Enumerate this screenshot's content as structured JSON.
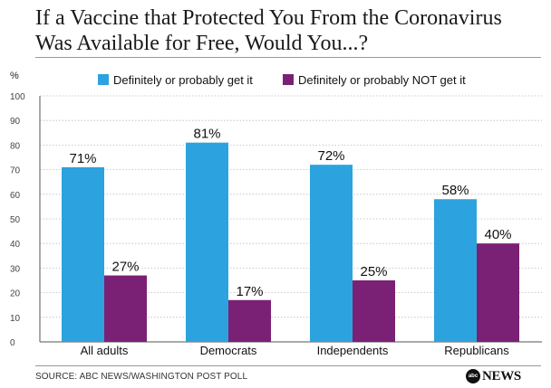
{
  "title_line1": "If a Vaccine that Protected You From the Coronavirus",
  "title_line2": "Was Available for Free, Would You...?",
  "source": "SOURCE: ABC NEWS/WASHINGTON POST POLL",
  "brand": {
    "logo_text": "abc",
    "name": "NEWS"
  },
  "colors": {
    "get": "#2ca3de",
    "not_get": "#7b2175",
    "axis": "#555555",
    "grid": "#bbbbbb"
  },
  "chart_data": {
    "type": "bar",
    "unit_label": "%",
    "ylim": [
      0,
      100
    ],
    "yticks": [
      0,
      10,
      20,
      30,
      40,
      50,
      60,
      70,
      80,
      90,
      100
    ],
    "categories": [
      "All adults",
      "Democrats",
      "Independents",
      "Republicans"
    ],
    "series": [
      {
        "name": "Definitely or probably get it",
        "values": [
          71,
          81,
          72,
          58
        ],
        "labels": [
          "71%",
          "81%",
          "72%",
          "58%"
        ],
        "color": "#2ca3de"
      },
      {
        "name": "Definitely or probably NOT get it",
        "values": [
          27,
          17,
          25,
          40
        ],
        "labels": [
          "27%",
          "17%",
          "25%",
          "40%"
        ],
        "color": "#7b2175"
      }
    ],
    "legend_position": "top"
  }
}
